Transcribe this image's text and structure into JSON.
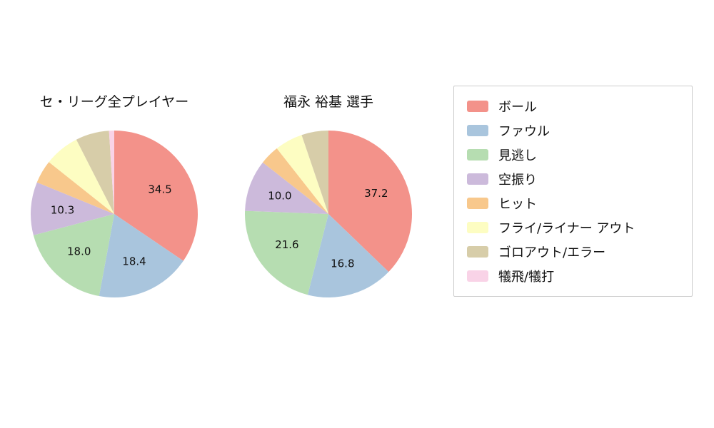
{
  "chart_data": [
    {
      "type": "pie",
      "title": "セ・リーグ全プレイヤー",
      "labels": [
        "ボール",
        "ファウル",
        "見逃し",
        "空振り",
        "ヒット",
        "フライ/ライナー アウト",
        "ゴロアウト/エラー",
        "犠飛/犠打"
      ],
      "values": [
        34.5,
        18.4,
        18.0,
        10.3,
        4.5,
        6.8,
        6.5,
        1.0
      ],
      "start_angle_deg": 0,
      "direction": "clockwise",
      "label_min_pct": 10,
      "value_format": "one_decimal"
    },
    {
      "type": "pie",
      "title": "福永 裕基  選手",
      "labels": [
        "ボール",
        "ファウル",
        "見逃し",
        "空振り",
        "ヒット",
        "フライ/ライナー アウト",
        "ゴロアウト/エラー",
        "犠飛/犠打"
      ],
      "values": [
        37.2,
        16.8,
        21.6,
        10.0,
        3.8,
        5.4,
        5.2,
        0.0
      ],
      "start_angle_deg": 0,
      "direction": "clockwise",
      "label_min_pct": 10,
      "value_format": "one_decimal"
    }
  ],
  "legend": {
    "position": "right",
    "items": [
      {
        "label": "ボール",
        "color": "#f3928a"
      },
      {
        "label": "ファウル",
        "color": "#a9c5dd"
      },
      {
        "label": "見逃し",
        "color": "#b6ddb1"
      },
      {
        "label": "空振り",
        "color": "#ccbadb"
      },
      {
        "label": "ヒット",
        "color": "#f8c88c"
      },
      {
        "label": "フライ/ライナー アウト",
        "color": "#fdfdc2"
      },
      {
        "label": "ゴロアウト/エラー",
        "color": "#d7cda9"
      },
      {
        "label": "犠飛/犠打",
        "color": "#f9d3e7"
      }
    ]
  }
}
